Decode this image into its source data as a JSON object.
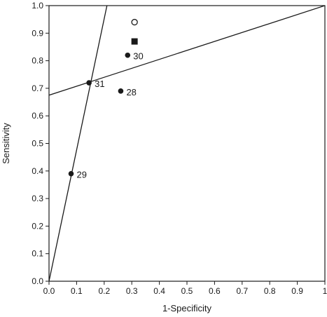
{
  "chart_data": {
    "type": "scatter",
    "xlabel": "1-Specificity",
    "ylabel": "Sensitivity",
    "xlim": [
      0.0,
      1.0
    ],
    "ylim": [
      0.0,
      1.0
    ],
    "x_ticks": [
      "0.0",
      "0.1",
      "0.2",
      "0.3",
      "0.4",
      "0.5",
      "0.6",
      "0.7",
      "0.8",
      "0.9",
      "1"
    ],
    "y_ticks": [
      "0.0",
      "0.1",
      "0.2",
      "0.3",
      "0.4",
      "0.5",
      "0.6",
      "0.7",
      "0.8",
      "0.9",
      "1.0"
    ],
    "grid": false,
    "legend": "none",
    "points": [
      {
        "label": "29",
        "x": 0.08,
        "y": 0.39,
        "marker": "filled-circle"
      },
      {
        "label": "31",
        "x": 0.145,
        "y": 0.72,
        "marker": "filled-circle"
      },
      {
        "label": "28",
        "x": 0.26,
        "y": 0.69,
        "marker": "filled-circle"
      },
      {
        "label": "30",
        "x": 0.285,
        "y": 0.82,
        "marker": "filled-circle"
      },
      {
        "label": "",
        "x": 0.31,
        "y": 0.87,
        "marker": "filled-square"
      },
      {
        "label": "",
        "x": 0.31,
        "y": 0.94,
        "marker": "open-circle"
      }
    ],
    "lines": [
      {
        "x": [
          0.0,
          0.21
        ],
        "y": [
          0.0,
          1.0
        ]
      },
      {
        "x": [
          0.0,
          1.0
        ],
        "y": [
          0.675,
          1.0
        ]
      }
    ],
    "colors": {
      "ink": "#1a1a1a",
      "background": "#ffffff"
    }
  }
}
